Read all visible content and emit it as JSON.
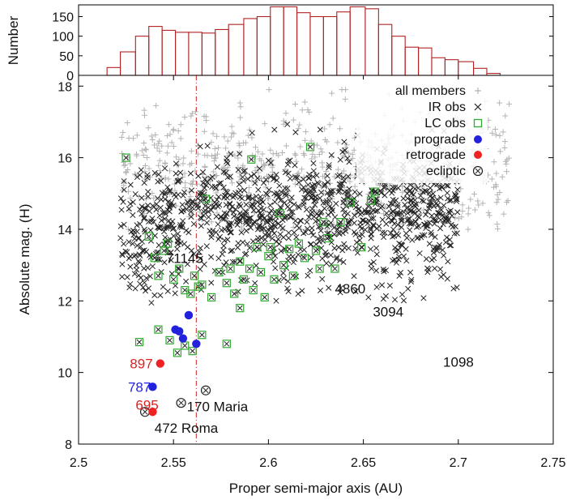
{
  "chart_data": {
    "type": "scatter",
    "top_panel": {
      "type": "histogram",
      "ylabel": "Number",
      "ylim": [
        0,
        180
      ],
      "yticks": [
        0,
        50,
        100,
        150
      ],
      "bin_edges": [
        2.515,
        2.522,
        2.53,
        2.537,
        2.544,
        2.551,
        2.558,
        2.565,
        2.572,
        2.579,
        2.587,
        2.594,
        2.601,
        2.608,
        2.615,
        2.622,
        2.629,
        2.636,
        2.643,
        2.651,
        2.658,
        2.665,
        2.672,
        2.679,
        2.686,
        2.693,
        2.7,
        2.708,
        2.715,
        2.722
      ],
      "counts": [
        20,
        60,
        100,
        125,
        115,
        110,
        110,
        108,
        117,
        130,
        145,
        150,
        175,
        175,
        160,
        150,
        150,
        162,
        175,
        170,
        130,
        100,
        72,
        70,
        45,
        40,
        35,
        18,
        5
      ]
    },
    "xlabel": "Proper semi-major axis (AU)",
    "ylabel": "Absolute mag. (H)",
    "xlim": [
      2.5,
      2.75
    ],
    "ylim": [
      8,
      18.3
    ],
    "xticks": [
      2.5,
      2.55,
      2.6,
      2.65,
      2.7,
      2.75
    ],
    "xtick_labels": [
      "2.5",
      "2.55",
      "2.6",
      "2.65",
      "2.7",
      "2.75"
    ],
    "yticks": [
      8,
      10,
      12,
      14,
      16,
      18
    ],
    "ytick_labels": [
      "8",
      "10",
      "12",
      "14",
      "16",
      "18"
    ],
    "vline": {
      "x": 2.562,
      "style": "dash-dot",
      "color": "#cc2222"
    },
    "legend": {
      "position": "top-right",
      "entries": [
        "all members",
        "IR obs",
        "LC obs",
        "prograde",
        "retrograde",
        "ecliptic"
      ]
    },
    "series": [
      {
        "name": "all members",
        "marker": "plus",
        "color": "#b4b4b4",
        "generated_count": 640,
        "note": "dense cloud spanning a 2.52-2.73 AU, mostly H 14-18"
      },
      {
        "name": "IR obs",
        "marker": "x",
        "color": "#222222",
        "generated_count": 1150,
        "note": "dense cloud spanning a 2.52-2.70 AU, mostly H 12.5-16"
      },
      {
        "name": "LC obs",
        "marker": "square",
        "color": "#2faa2f",
        "points": [
          [
            2.525,
            16.0
          ],
          [
            2.537,
            13.8
          ],
          [
            2.54,
            13.2
          ],
          [
            2.542,
            12.7
          ],
          [
            2.545,
            13.4
          ],
          [
            2.547,
            13.6
          ],
          [
            2.55,
            12.6
          ],
          [
            2.553,
            12.9
          ],
          [
            2.556,
            12.3
          ],
          [
            2.559,
            12.2
          ],
          [
            2.561,
            12.7
          ],
          [
            2.563,
            12.4
          ],
          [
            2.565,
            12.45
          ],
          [
            2.567,
            14.85
          ],
          [
            2.57,
            12.1
          ],
          [
            2.574,
            12.8
          ],
          [
            2.578,
            12.5
          ],
          [
            2.58,
            12.9
          ],
          [
            2.582,
            12.2
          ],
          [
            2.585,
            13.1
          ],
          [
            2.587,
            12.6
          ],
          [
            2.59,
            12.9
          ],
          [
            2.592,
            12.3
          ],
          [
            2.594,
            13.5
          ],
          [
            2.596,
            12.8
          ],
          [
            2.598,
            12.1
          ],
          [
            2.6,
            13.25
          ],
          [
            2.601,
            13.5
          ],
          [
            2.603,
            12.6
          ],
          [
            2.606,
            14.45
          ],
          [
            2.608,
            13.0
          ],
          [
            2.611,
            13.45
          ],
          [
            2.613,
            12.7
          ],
          [
            2.616,
            13.6
          ],
          [
            2.619,
            13.2
          ],
          [
            2.622,
            16.3
          ],
          [
            2.625,
            13.4
          ],
          [
            2.627,
            12.9
          ],
          [
            2.629,
            14.2
          ],
          [
            2.631,
            13.75
          ],
          [
            2.635,
            12.9
          ],
          [
            2.638,
            14.2
          ],
          [
            2.643,
            14.75
          ],
          [
            2.649,
            13.5
          ],
          [
            2.654,
            14.8
          ],
          [
            2.656,
            15.05
          ],
          [
            2.56,
            10.6
          ],
          [
            2.552,
            10.55
          ],
          [
            2.548,
            10.9
          ],
          [
            2.556,
            10.75
          ],
          [
            2.565,
            11.05
          ],
          [
            2.532,
            10.85
          ],
          [
            2.542,
            11.2
          ],
          [
            2.578,
            10.8
          ],
          [
            2.585,
            11.8
          ],
          [
            2.591,
            15.95
          ]
        ]
      },
      {
        "name": "prograde",
        "marker": "filled circle",
        "color": "#2222dd",
        "points": [
          [
            2.558,
            11.6
          ],
          [
            2.551,
            11.2
          ],
          [
            2.553,
            11.15
          ],
          [
            2.555,
            10.95
          ],
          [
            2.562,
            10.8
          ],
          [
            2.539,
            9.6
          ]
        ]
      },
      {
        "name": "retrograde",
        "marker": "filled circle",
        "color": "#ee2222",
        "points": [
          [
            2.543,
            10.25
          ],
          [
            2.539,
            8.9
          ]
        ]
      },
      {
        "name": "ecliptic",
        "marker": "open circle",
        "color": "#222222",
        "points": [
          [
            2.554,
            9.15
          ],
          [
            2.567,
            9.5
          ],
          [
            2.535,
            8.9
          ]
        ]
      }
    ],
    "annotations": [
      {
        "text": "71145",
        "x": 2.546,
        "y": 13.2,
        "color": "#111111"
      },
      {
        "text": "4860",
        "x": 2.635,
        "y": 12.35,
        "color": "#111111"
      },
      {
        "text": "3094",
        "x": 2.655,
        "y": 11.7,
        "color": "#111111"
      },
      {
        "text": "1098",
        "x": 2.692,
        "y": 10.3,
        "color": "#111111"
      },
      {
        "text": "897",
        "x": 2.527,
        "y": 10.25,
        "color": "#dd2222"
      },
      {
        "text": "787",
        "x": 2.526,
        "y": 9.6,
        "color": "#2222dd"
      },
      {
        "text": "695",
        "x": 2.53,
        "y": 9.1,
        "color": "#dd2222"
      },
      {
        "text": "170 Maria",
        "x": 2.557,
        "y": 9.05,
        "color": "#111111"
      },
      {
        "text": "472 Roma",
        "x": 2.54,
        "y": 8.45,
        "color": "#111111"
      }
    ]
  }
}
